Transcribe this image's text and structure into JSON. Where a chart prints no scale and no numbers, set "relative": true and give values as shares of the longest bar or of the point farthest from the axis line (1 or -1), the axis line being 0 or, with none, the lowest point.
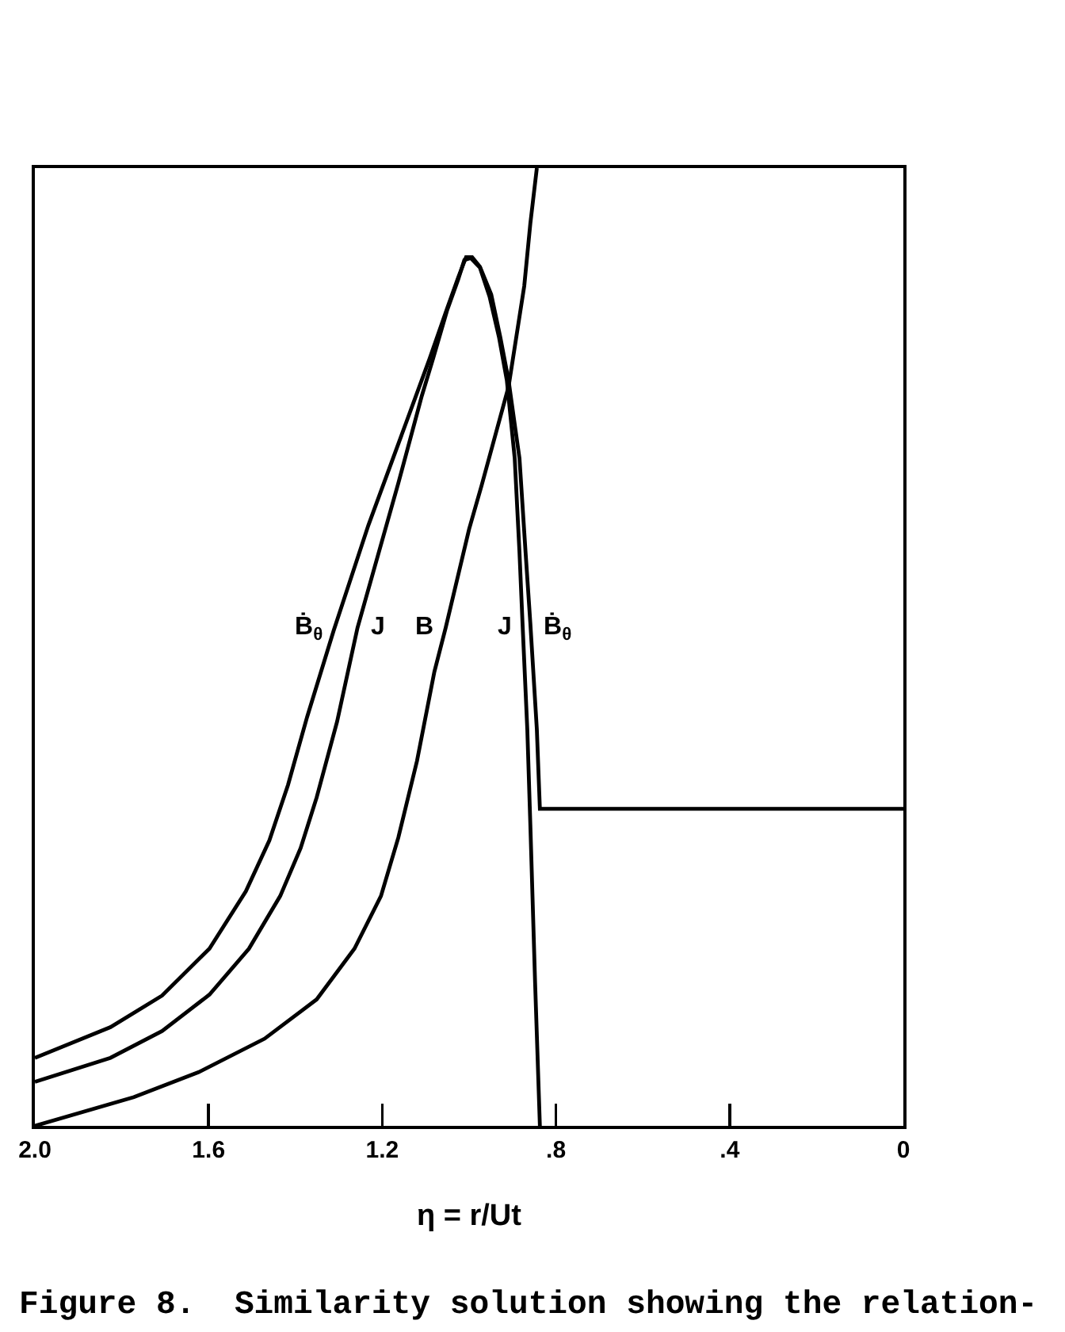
{
  "chart_data": {
    "type": "line",
    "xlabel": "η = r/Ut",
    "annotations": [
      "Figure 8.  Similarity solution showing the relation-"
    ],
    "relative": true,
    "xlim": [
      2,
      0
    ],
    "xticks": [
      {
        "value": 2,
        "label": "2.0"
      },
      1.6,
      1.2,
      {
        "value": 0.8,
        "label": ".8"
      },
      {
        "value": 0.4,
        "label": ".4"
      },
      0
    ],
    "tick_labels": "x",
    "line_style": "solid",
    "series": [
      {
        "name": "Ḃ$_{θ}$",
        "color": "#000000",
        "x": [
          2,
          1.826,
          1.707,
          1.598,
          1.514,
          1.46,
          1.417,
          1.373,
          1.312,
          1.232,
          1.163,
          1.091,
          1.051,
          1.025,
          1.007,
          0.993,
          0.975,
          0.949,
          0.928,
          0.909,
          0.884,
          0.87,
          0.859,
          0.844,
          0.837,
          0
        ],
        "values": [
          0.071,
          0.103,
          0.136,
          0.185,
          0.245,
          0.298,
          0.356,
          0.427,
          0.517,
          0.627,
          0.712,
          0.801,
          0.853,
          0.886,
          0.907,
          0.907,
          0.897,
          0.868,
          0.823,
          0.778,
          0.697,
          0.599,
          0.525,
          0.414,
          0.331,
          0.331
        ]
      },
      {
        "name": "J",
        "color": "#000000",
        "x": [
          2,
          1.826,
          1.707,
          1.598,
          1.507,
          1.435,
          1.388,
          1.351,
          1.304,
          1.257,
          1.163,
          1.109,
          1.083,
          1.051,
          1.025,
          1.011,
          0.996,
          0.975,
          0.953,
          0.931,
          0.913,
          0.895,
          0.884,
          0.877,
          0.866,
          0.859,
          0.848,
          0.837
        ],
        "values": [
          0.046,
          0.071,
          0.099,
          0.137,
          0.185,
          0.24,
          0.29,
          0.343,
          0.422,
          0.52,
          0.671,
          0.762,
          0.801,
          0.851,
          0.884,
          0.904,
          0.906,
          0.896,
          0.866,
          0.823,
          0.778,
          0.697,
          0.599,
          0.525,
          0.414,
          0.315,
          0.149,
          0
        ]
      },
      {
        "name": "B",
        "color": "#000000",
        "x": [
          2,
          1.772,
          1.623,
          1.471,
          1.351,
          1.264,
          1.203,
          1.163,
          1.12,
          1.08,
          1.054,
          1.0,
          0.971,
          0.909,
          0.873,
          0.859,
          0.844
        ],
        "values": [
          0,
          0.03,
          0.056,
          0.091,
          0.132,
          0.185,
          0.24,
          0.301,
          0.381,
          0.474,
          0.52,
          0.623,
          0.669,
          0.772,
          0.877,
          0.942,
          1
        ]
      }
    ]
  }
}
